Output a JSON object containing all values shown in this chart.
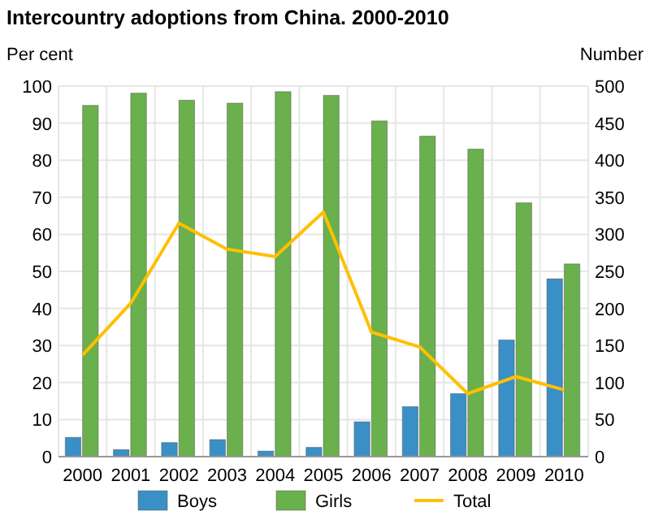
{
  "chart_data": {
    "type": "bar",
    "title": "Intercountry adoptions from China. 2000-2010",
    "ylabel": "Per cent",
    "y2label": "Number",
    "categories": [
      "2000",
      "2001",
      "2002",
      "2003",
      "2004",
      "2005",
      "2006",
      "2007",
      "2008",
      "2009",
      "2010"
    ],
    "series": [
      {
        "name": "Boys",
        "color": "#3a8fc6",
        "values": [
          5.2,
          1.9,
          3.8,
          4.6,
          1.5,
          2.5,
          9.4,
          13.5,
          17,
          31.5,
          48
        ]
      },
      {
        "name": "Girls",
        "color": "#6ab04c",
        "values": [
          94.8,
          98.1,
          96.2,
          95.4,
          98.5,
          97.5,
          90.6,
          86.5,
          83,
          68.5,
          52
        ]
      },
      {
        "name": "Total",
        "type": "line",
        "axis": "y2",
        "color": "#ffc000",
        "values": [
          137,
          207,
          315,
          280,
          270,
          330,
          168,
          148,
          85,
          108,
          90
        ]
      }
    ],
    "ylim": [
      0,
      100
    ],
    "yticks": [
      0,
      10,
      20,
      30,
      40,
      50,
      60,
      70,
      80,
      90,
      100
    ],
    "y2lim": [
      0,
      500
    ],
    "y2ticks": [
      0,
      50,
      100,
      150,
      200,
      250,
      300,
      350,
      400,
      450,
      500
    ],
    "grid": true,
    "legend": "bottom",
    "marker": "none"
  }
}
